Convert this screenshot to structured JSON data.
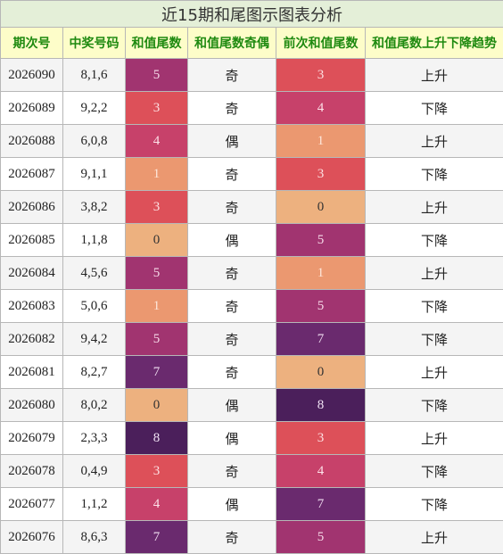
{
  "title": "近15期和尾图示图表分析",
  "headers": [
    "期次号",
    "中奖号码",
    "和值尾数",
    "和值尾数奇偶",
    "前次和值尾数",
    "和值尾数上升下降趋势"
  ],
  "heat_colors": {
    "0": {
      "bg": "#edb17f",
      "fg": "#333333"
    },
    "1": {
      "bg": "#eb9870",
      "fg": "#fde7db"
    },
    "3": {
      "bg": "#dd5059",
      "fg": "#fde1e3"
    },
    "4": {
      "bg": "#c7416a",
      "fg": "#fde1e8"
    },
    "5": {
      "bg": "#a13470",
      "fg": "#f6d9e8"
    },
    "7": {
      "bg": "#6a2a6e",
      "fg": "#f1dff1"
    },
    "8": {
      "bg": "#4b1f5b",
      "fg": "#f1e3f5"
    }
  },
  "rows": [
    {
      "period": "2026090",
      "numbers": "8,1,6",
      "tail": "5",
      "parity": "奇",
      "prev_tail": "3",
      "trend": "上升"
    },
    {
      "period": "2026089",
      "numbers": "9,2,2",
      "tail": "3",
      "parity": "奇",
      "prev_tail": "4",
      "trend": "下降"
    },
    {
      "period": "2026088",
      "numbers": "6,0,8",
      "tail": "4",
      "parity": "偶",
      "prev_tail": "1",
      "trend": "上升"
    },
    {
      "period": "2026087",
      "numbers": "9,1,1",
      "tail": "1",
      "parity": "奇",
      "prev_tail": "3",
      "trend": "下降"
    },
    {
      "period": "2026086",
      "numbers": "3,8,2",
      "tail": "3",
      "parity": "奇",
      "prev_tail": "0",
      "trend": "上升"
    },
    {
      "period": "2026085",
      "numbers": "1,1,8",
      "tail": "0",
      "parity": "偶",
      "prev_tail": "5",
      "trend": "下降"
    },
    {
      "period": "2026084",
      "numbers": "4,5,6",
      "tail": "5",
      "parity": "奇",
      "prev_tail": "1",
      "trend": "上升"
    },
    {
      "period": "2026083",
      "numbers": "5,0,6",
      "tail": "1",
      "parity": "奇",
      "prev_tail": "5",
      "trend": "下降"
    },
    {
      "period": "2026082",
      "numbers": "9,4,2",
      "tail": "5",
      "parity": "奇",
      "prev_tail": "7",
      "trend": "下降"
    },
    {
      "period": "2026081",
      "numbers": "8,2,7",
      "tail": "7",
      "parity": "奇",
      "prev_tail": "0",
      "trend": "上升"
    },
    {
      "period": "2026080",
      "numbers": "8,0,2",
      "tail": "0",
      "parity": "偶",
      "prev_tail": "8",
      "trend": "下降"
    },
    {
      "period": "2026079",
      "numbers": "2,3,3",
      "tail": "8",
      "parity": "偶",
      "prev_tail": "3",
      "trend": "上升"
    },
    {
      "period": "2026078",
      "numbers": "0,4,9",
      "tail": "3",
      "parity": "奇",
      "prev_tail": "4",
      "trend": "下降"
    },
    {
      "period": "2026077",
      "numbers": "1,1,2",
      "tail": "4",
      "parity": "偶",
      "prev_tail": "7",
      "trend": "下降"
    },
    {
      "period": "2026076",
      "numbers": "8,6,3",
      "tail": "7",
      "parity": "奇",
      "prev_tail": "5",
      "trend": "上升"
    }
  ]
}
